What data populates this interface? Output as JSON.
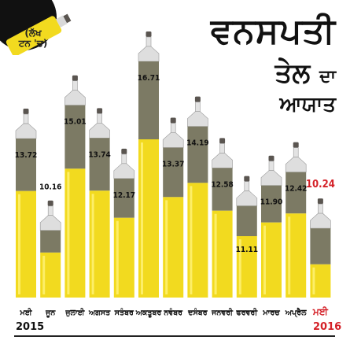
{
  "title": {
    "line1": "ਵਨਸਪਤੀ",
    "line2": "ਤੇਲ",
    "line3": "ਦਾ",
    "line4": "ਆਯਾਤ"
  },
  "unit_label": {
    "line1": "(ਲੱਖ",
    "line2": "ਟਨ 'ਚ)"
  },
  "year_start": "2015",
  "year_end": "2016",
  "colors": {
    "bottle_fill": "#f2da1f",
    "bottle_gray": "#7c7a64",
    "cap": "#5a5550",
    "text": "#111111",
    "highlight": "#d42128",
    "badge": "#111111"
  },
  "chart_data": {
    "type": "bar",
    "categories": [
      "ਮਈ",
      "ਜੂਨ",
      "ਜੁਲਾਈ",
      "ਅਗਸਤ",
      "ਸਤੰਬਰ",
      "ਅਕਤੂਬਰ",
      "ਨਵੰਬਰ",
      "ਦਸੰਬਰ",
      "ਜਨਵਰੀ",
      "ਫਰਵਰੀ",
      "ਮਾਰਚ",
      "ਅਪ੍ਰੈਲ",
      "ਮਈ"
    ],
    "value_labels": [
      "13.72",
      "10.16",
      "15.01",
      "13.74",
      "12.17",
      "16.71",
      "13.37",
      "14.19",
      "12.58",
      "11.11",
      "11.90",
      "12.42",
      "10.24"
    ],
    "values": [
      13.72,
      10.16,
      15.01,
      13.74,
      12.17,
      16.71,
      13.37,
      14.19,
      12.58,
      11.11,
      11.9,
      12.42,
      10.24
    ],
    "highlight_index": 12
  }
}
